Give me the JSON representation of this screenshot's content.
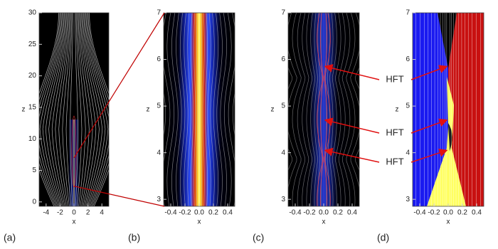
{
  "chart_data": [
    {
      "type": "field",
      "panel_label": "(a)",
      "xlabel": "x",
      "ylabel": "z",
      "xlim": [
        -5,
        5
      ],
      "ylim": [
        -0.7,
        30
      ],
      "xticks": [
        -4,
        -2,
        0,
        2,
        4
      ],
      "yticks": [
        0,
        5,
        10,
        15,
        20,
        25,
        30
      ]
    },
    {
      "type": "field",
      "panel_label": "(b)",
      "xlabel": "x",
      "ylabel": "z",
      "xlim": [
        -0.5,
        0.5
      ],
      "ylim": [
        2.85,
        7
      ],
      "xticks": [
        -0.4,
        -0.2,
        {
          "value": 0,
          "label": "0.0"
        },
        0.2,
        0.4
      ],
      "yticks": [
        3,
        4,
        5,
        6,
        7
      ]
    },
    {
      "type": "field",
      "panel_label": "(c)",
      "xlabel": "x",
      "ylabel": "z",
      "xlim": [
        -0.5,
        0.5
      ],
      "ylim": [
        2.85,
        7
      ],
      "xticks": [
        -0.4,
        -0.2,
        {
          "value": 0,
          "label": "0.0"
        },
        0.2,
        0.4
      ],
      "yticks": [
        3,
        4,
        5,
        6,
        7
      ],
      "annotations": [
        "HFT",
        "HFT",
        "HFT"
      ]
    },
    {
      "type": "field",
      "panel_label": "(d)",
      "xlabel": "x",
      "ylabel": "z",
      "xlim": [
        -0.5,
        0.5
      ],
      "ylim": [
        2.85,
        7
      ],
      "xticks": [
        -0.4,
        -0.2,
        {
          "value": 0,
          "label": "0.0"
        },
        0.2,
        0.4
      ],
      "yticks": [
        3,
        4,
        5,
        6,
        7
      ]
    }
  ]
}
